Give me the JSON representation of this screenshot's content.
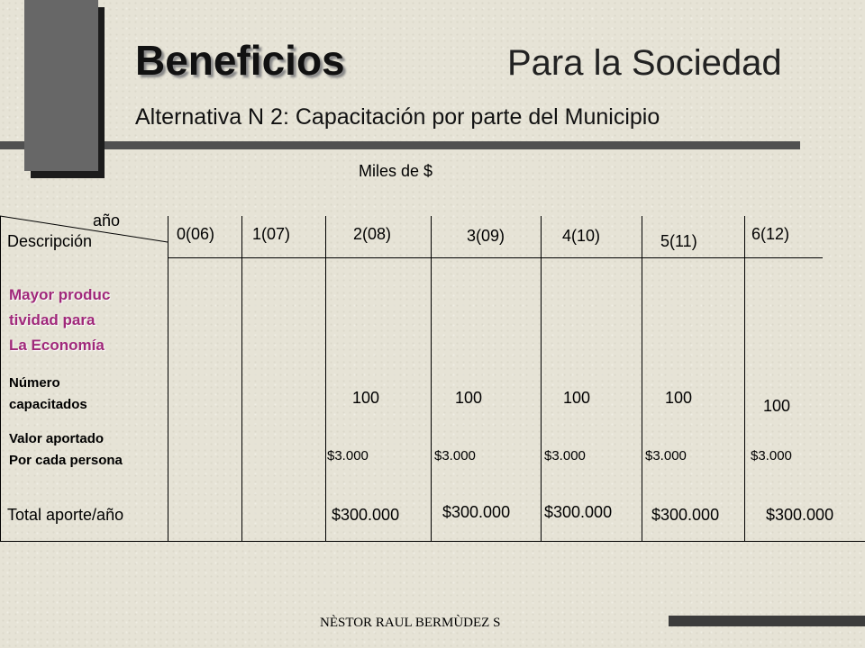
{
  "title": {
    "bold": "Beneficios",
    "rest": "Para la Sociedad"
  },
  "subtitle": "Alternativa N 2: Capacitación por parte del Municipio",
  "units": "Miles de $",
  "table": {
    "corner_top": "año",
    "corner_bottom": "Descripción",
    "years": [
      "0(06)",
      "1(07)",
      "2(08)",
      "3(09)",
      "4(10)",
      "5(11)",
      "6(12)"
    ],
    "section_label": [
      "Mayor produc",
      "tividad para",
      "La Economía"
    ],
    "rows": [
      {
        "label": [
          "Número",
          "capacitados"
        ],
        "values": [
          "100",
          "100",
          "100",
          "100",
          "100"
        ]
      },
      {
        "label": [
          "Valor aportado",
          "Por cada persona"
        ],
        "values": [
          "$3.000",
          "$3.000",
          "$3.000",
          "$3.000",
          "$3.000"
        ]
      }
    ],
    "total": {
      "label": "Total aporte/año",
      "values": [
        "$300.000",
        "$300.000",
        "$300.000",
        "$300.000",
        "$300.000"
      ]
    }
  },
  "footer": "NÈSTOR RAUL BERMÙDEZ S"
}
